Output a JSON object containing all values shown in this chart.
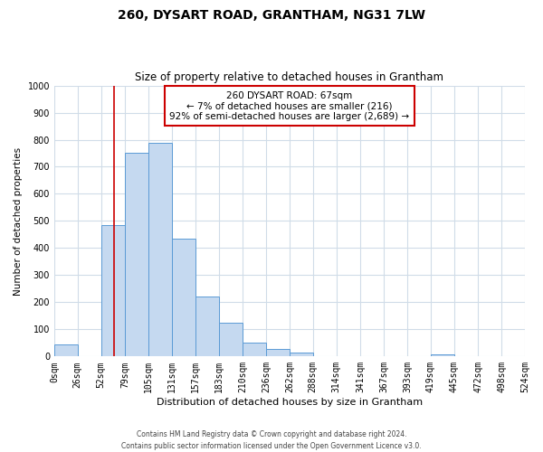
{
  "title": "260, DYSART ROAD, GRANTHAM, NG31 7LW",
  "subtitle": "Size of property relative to detached houses in Grantham",
  "xlabel": "Distribution of detached houses by size in Grantham",
  "ylabel": "Number of detached properties",
  "bar_edges": [
    0,
    26,
    52,
    79,
    105,
    131,
    157,
    183,
    210,
    236,
    262,
    288,
    314,
    341,
    367,
    393,
    419,
    445,
    472,
    498,
    524
  ],
  "bar_heights": [
    45,
    0,
    485,
    750,
    790,
    435,
    220,
    125,
    52,
    28,
    15,
    0,
    0,
    0,
    0,
    0,
    8,
    0,
    0,
    0,
    0
  ],
  "bar_color": "#c5d9f0",
  "bar_edge_color": "#5b9bd5",
  "vline_x": 67,
  "vline_color": "#cc0000",
  "annotation_line1": "260 DYSART ROAD: 67sqm",
  "annotation_line2": "← 7% of detached houses are smaller (216)",
  "annotation_line3": "92% of semi-detached houses are larger (2,689) →",
  "annotation_box_color": "#ffffff",
  "annotation_box_edge": "#cc0000",
  "ylim": [
    0,
    1000
  ],
  "tick_labels": [
    "0sqm",
    "26sqm",
    "52sqm",
    "79sqm",
    "105sqm",
    "131sqm",
    "157sqm",
    "183sqm",
    "210sqm",
    "236sqm",
    "262sqm",
    "288sqm",
    "314sqm",
    "341sqm",
    "367sqm",
    "393sqm",
    "419sqm",
    "445sqm",
    "472sqm",
    "498sqm",
    "524sqm"
  ],
  "footnote": "Contains HM Land Registry data © Crown copyright and database right 2024.\nContains public sector information licensed under the Open Government Licence v3.0.",
  "background_color": "#ffffff",
  "grid_color": "#d0dce8"
}
